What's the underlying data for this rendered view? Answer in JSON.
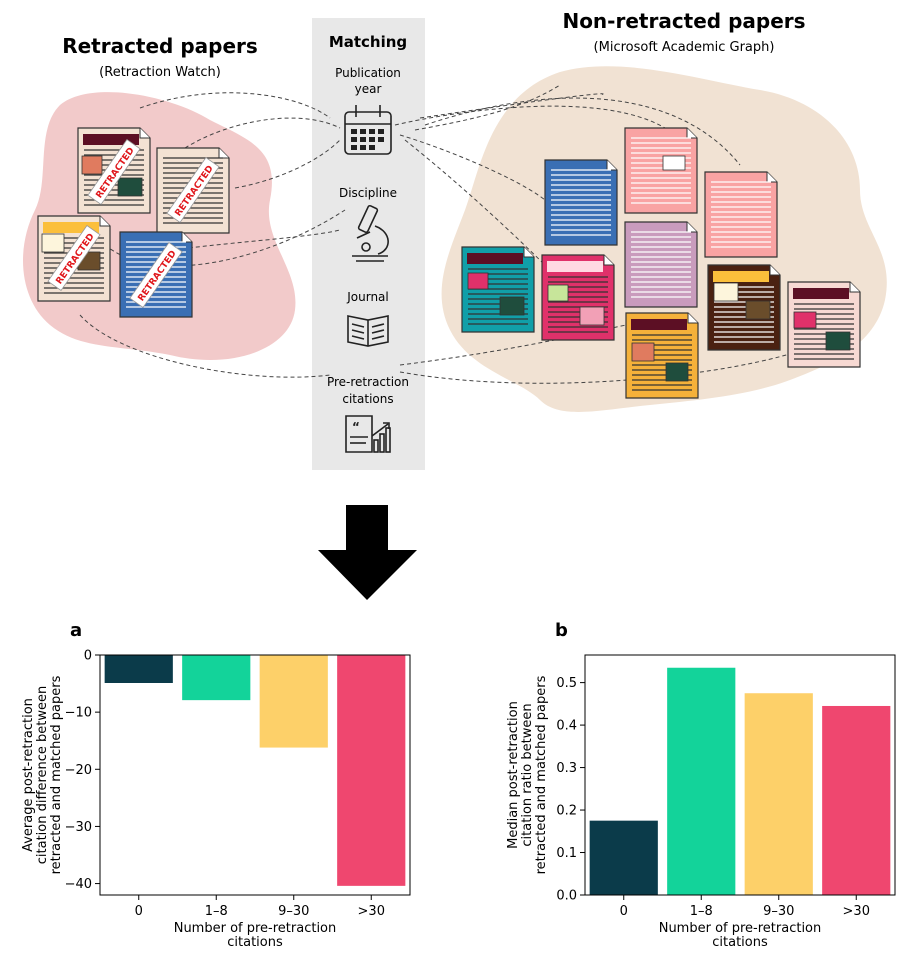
{
  "diagram": {
    "retracted": {
      "title": "Retracted papers",
      "subtitle": "(Retraction Watch)",
      "stamp": "RETRACTED"
    },
    "non_retracted": {
      "title": "Non-retracted papers",
      "subtitle": "(Microsoft Academic Graph)"
    },
    "matching": {
      "title": "Matching",
      "items": [
        {
          "label_lines": [
            "Publication",
            "year"
          ],
          "icon": "calendar-icon"
        },
        {
          "label_lines": [
            "Discipline"
          ],
          "icon": "microscope-icon"
        },
        {
          "label_lines": [
            "Journal"
          ],
          "icon": "open-book-icon"
        },
        {
          "label_lines": [
            "Pre-retraction",
            "citations"
          ],
          "icon": "citation-chart-icon"
        }
      ]
    },
    "colors": {
      "retracted_blob": "#f2caca",
      "non_retracted_blob": "#f1e2d3",
      "matching_panel": "#e8e8e8",
      "stamp_text": "#e0161b"
    }
  },
  "chart_data": [
    {
      "panel_label": "a",
      "type": "bar",
      "categories": [
        "0",
        "1–8",
        "9–30",
        ">30"
      ],
      "values": [
        -4.9,
        -7.9,
        -16.2,
        -40.4
      ],
      "ylim": [
        -42,
        0
      ],
      "yticks": [
        0,
        -10,
        -20,
        -30,
        -40
      ],
      "ytick_labels": [
        "0",
        "−10",
        "−20",
        "−30",
        "−40"
      ],
      "ylabel_lines": [
        "Average post-retraction",
        "citation difference between",
        "retracted and matched papers"
      ],
      "xlabel_lines": [
        "Number of pre-retraction",
        "citations"
      ],
      "colors": [
        "#0b3b4a",
        "#13d39a",
        "#fdd069",
        "#ef476f"
      ]
    },
    {
      "panel_label": "b",
      "type": "bar",
      "categories": [
        "0",
        "1–8",
        "9–30",
        ">30"
      ],
      "values": [
        0.175,
        0.535,
        0.475,
        0.445
      ],
      "ylim": [
        0,
        0.565
      ],
      "yticks": [
        0,
        0.1,
        0.2,
        0.3,
        0.4,
        0.5
      ],
      "ytick_labels": [
        "0.0",
        "0.1",
        "0.2",
        "0.3",
        "0.4",
        "0.5"
      ],
      "ylabel_lines": [
        "Median post-retraction",
        "citation ratio between",
        "retracted and matched papers"
      ],
      "xlabel_lines": [
        "Number of pre-retraction",
        "citations"
      ],
      "colors": [
        "#0b3b4a",
        "#13d39a",
        "#fdd069",
        "#ef476f"
      ]
    }
  ]
}
